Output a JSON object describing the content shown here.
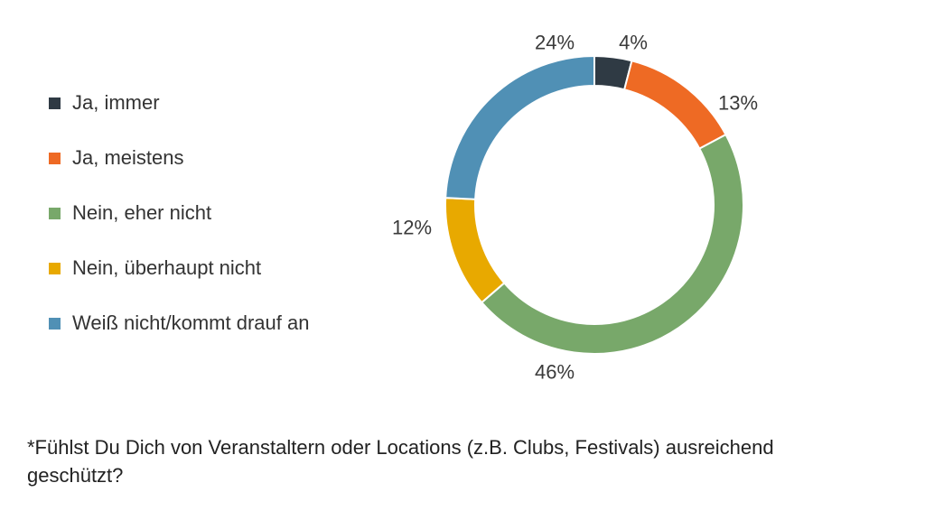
{
  "chart_data": {
    "type": "pie",
    "variant": "donut",
    "categories": [
      "Ja, immer",
      "Ja, meistens",
      "Nein, eher nicht",
      "Nein, überhaupt nicht",
      "Weiß nicht/kommt drauf an"
    ],
    "values": [
      4,
      13,
      46,
      12,
      24
    ],
    "data_labels": [
      "4%",
      "13%",
      "46%",
      "12%",
      "24%"
    ],
    "colors": [
      "#2f3a44",
      "#ee6a24",
      "#78a86a",
      "#e8a900",
      "#5090b5"
    ],
    "legend_position": "left",
    "title": ""
  },
  "legend": {
    "items": [
      {
        "label": "Ja, immer",
        "color": "#2f3a44"
      },
      {
        "label": "Ja, meistens",
        "color": "#ee6a24"
      },
      {
        "label": "Nein, eher nicht",
        "color": "#78a86a"
      },
      {
        "label": "Nein, überhaupt nicht",
        "color": "#e8a900"
      },
      {
        "label": "Weiß nicht/kommt drauf an",
        "color": "#5090b5"
      }
    ]
  },
  "footnote": {
    "text": "*Fühlst Du Dich von Veranstaltern oder Locations (z.B. Clubs, Festivals) ausreichend geschützt?"
  }
}
